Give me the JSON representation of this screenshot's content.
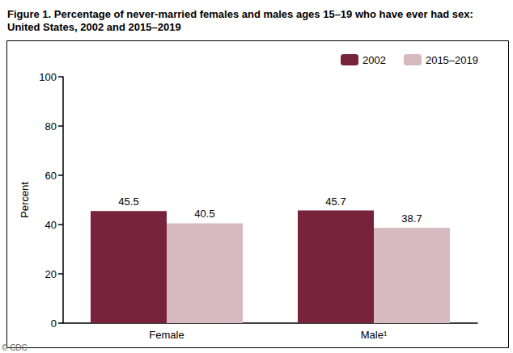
{
  "chart_data": {
    "type": "bar",
    "title": "Figure 1. Percentage of never-married females and males ages 15–19 who have ever had sex: United States, 2002 and 2015–2019",
    "y_label": "Percent",
    "categories": [
      "Female",
      "Male¹"
    ],
    "series": [
      {
        "name": "2002",
        "color": "#76233b",
        "values": [
          45.5,
          45.7
        ]
      },
      {
        "name": "2015–2019",
        "color": "#d7b9c0",
        "values": [
          40.5,
          38.7
        ]
      }
    ],
    "ylim": [
      0,
      100
    ],
    "yticks": [
      0,
      20,
      40,
      60,
      80,
      100
    ],
    "grid": false,
    "legend": "upper right",
    "data_labels": true,
    "annotations": [
      "© CDC"
    ]
  }
}
